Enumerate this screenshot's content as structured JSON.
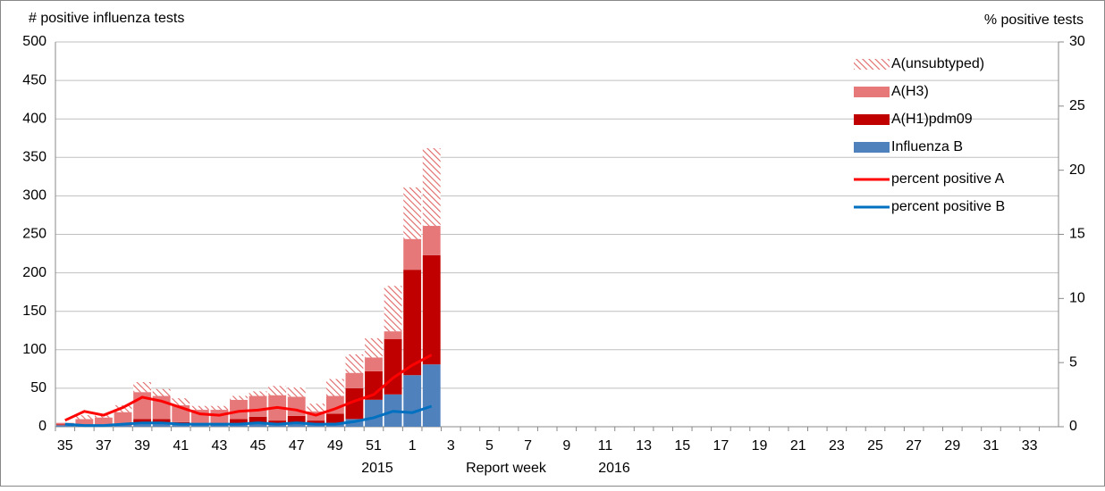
{
  "chart_data": {
    "type": "bar",
    "stacked": true,
    "y_label": "# positive influenza tests",
    "y2_label": "% positive tests",
    "x_label": "Report week",
    "year_labels": [
      "2015",
      "2016"
    ],
    "categories": [
      "35",
      null,
      "37",
      null,
      "39",
      null,
      "41",
      null,
      "43",
      null,
      "45",
      null,
      "47",
      null,
      "49",
      null,
      "51",
      null,
      "1",
      null,
      "3",
      null,
      "5",
      null,
      "7",
      null,
      "9",
      null,
      "11",
      null,
      "13",
      null,
      "15",
      null,
      "17",
      null,
      "19",
      null,
      "21",
      null,
      "23",
      null,
      "25",
      null,
      "27",
      null,
      "29",
      null,
      "31",
      null,
      "33",
      null
    ],
    "series": [
      {
        "name": "Influenza B",
        "type": "bar",
        "color": "#4f81bd",
        "values": [
          2,
          1,
          1,
          2,
          5,
          4,
          3,
          2,
          3,
          4,
          5,
          3,
          4,
          3,
          5,
          10,
          35,
          42,
          67,
          81,
          null,
          null,
          null,
          null,
          null,
          null,
          null,
          null,
          null,
          null,
          null,
          null,
          null,
          null,
          null,
          null,
          null,
          null,
          null,
          null,
          null,
          null,
          null,
          null,
          null,
          null,
          null,
          null,
          null,
          null,
          null,
          null
        ]
      },
      {
        "name": "A(H1)pdm09",
        "type": "bar",
        "color": "#c00000",
        "values": [
          1,
          1,
          1,
          2,
          5,
          6,
          3,
          2,
          2,
          6,
          8,
          5,
          10,
          5,
          12,
          40,
          37,
          72,
          137,
          142,
          null,
          null,
          null,
          null,
          null,
          null,
          null,
          null,
          null,
          null,
          null,
          null,
          null,
          null,
          null,
          null,
          null,
          null,
          null,
          null,
          null,
          null,
          null,
          null,
          null,
          null,
          null,
          null,
          null,
          null,
          null,
          null
        ]
      },
      {
        "name": "A(H3)",
        "type": "bar",
        "color": "#e6787a",
        "values": [
          2,
          8,
          10,
          15,
          35,
          30,
          22,
          18,
          17,
          25,
          27,
          33,
          25,
          12,
          23,
          20,
          18,
          10,
          40,
          38,
          null,
          null,
          null,
          null,
          null,
          null,
          null,
          null,
          null,
          null,
          null,
          null,
          null,
          null,
          null,
          null,
          null,
          null,
          null,
          null,
          null,
          null,
          null,
          null,
          null,
          null,
          null,
          null,
          null,
          null,
          null,
          null
        ]
      },
      {
        "name": "A(unsubtyped)",
        "type": "bar",
        "color": "#e06666",
        "hatch": true,
        "values": [
          0,
          5,
          3,
          9,
          13,
          9,
          9,
          5,
          5,
          5,
          6,
          12,
          12,
          10,
          22,
          24,
          25,
          59,
          67,
          101,
          null,
          null,
          null,
          null,
          null,
          null,
          null,
          null,
          null,
          null,
          null,
          null,
          null,
          null,
          null,
          null,
          null,
          null,
          null,
          null,
          null,
          null,
          null,
          null,
          null,
          null,
          null,
          null,
          null,
          null,
          null,
          null
        ]
      },
      {
        "name": "percent positive A",
        "type": "line",
        "axis": "y2",
        "color": "#ff0000",
        "values": [
          0.5,
          1.2,
          0.9,
          1.5,
          2.3,
          2.0,
          1.5,
          1.0,
          0.9,
          1.2,
          1.3,
          1.5,
          1.3,
          0.9,
          1.4,
          2.0,
          2.5,
          3.8,
          4.8,
          5.6,
          null,
          null,
          null,
          null,
          null,
          null,
          null,
          null,
          null,
          null,
          null,
          null,
          null,
          null,
          null,
          null,
          null,
          null,
          null,
          null,
          null,
          null,
          null,
          null,
          null,
          null,
          null,
          null,
          null,
          null,
          null,
          null
        ]
      },
      {
        "name": "percent positive B",
        "type": "line",
        "axis": "y2",
        "color": "#0070c0",
        "values": [
          0.2,
          0.1,
          0.1,
          0.2,
          0.3,
          0.3,
          0.2,
          0.2,
          0.2,
          0.2,
          0.3,
          0.2,
          0.3,
          0.2,
          0.2,
          0.4,
          0.7,
          1.2,
          1.1,
          1.6,
          null,
          null,
          null,
          null,
          null,
          null,
          null,
          null,
          null,
          null,
          null,
          null,
          null,
          null,
          null,
          null,
          null,
          null,
          null,
          null,
          null,
          null,
          null,
          null,
          null,
          null,
          null,
          null,
          null,
          null,
          null,
          null
        ]
      }
    ],
    "ylim": [
      0,
      500
    ],
    "yticks": [
      0,
      50,
      100,
      150,
      200,
      250,
      300,
      350,
      400,
      450,
      500
    ],
    "y2lim": [
      0,
      30
    ],
    "y2ticks": [
      0,
      5,
      10,
      15,
      20,
      25,
      30
    ],
    "grid": true,
    "legend": "upper right"
  }
}
